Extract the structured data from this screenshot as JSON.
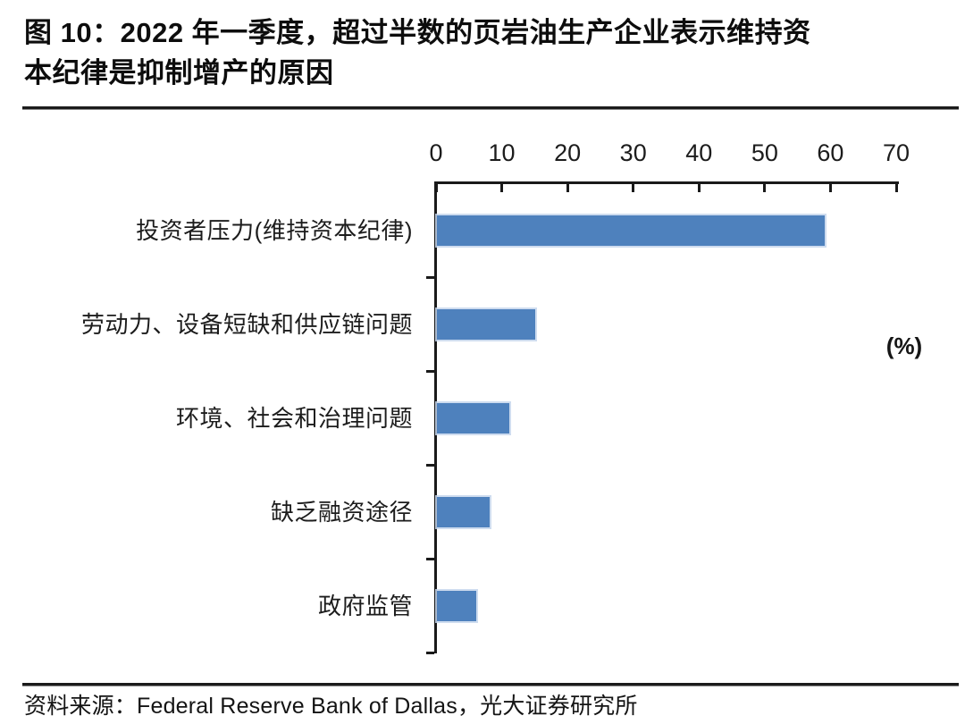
{
  "figure": {
    "title_lines": [
      "图 10：2022 年一季度，超过半数的页岩油生产企业表示维持资",
      "本纪律是抑制增产的原因"
    ],
    "title_full": "图 10：2022 年一季度，超过半数的页岩油生产企业表示维持资本纪律是抑制增产的原因",
    "source": "资料来源：Federal Reserve Bank of Dallas，光大证券研究所"
  },
  "chart_data": {
    "type": "bar",
    "orientation": "horizontal",
    "title": "",
    "xlabel": "",
    "ylabel": "",
    "unit_label": "(%)",
    "categories": [
      "投资者压力(维持资本纪律)",
      "劳动力、设备短缺和供应链问题",
      "环境、社会和治理问题",
      "缺乏融资途径",
      "政府监管"
    ],
    "values": [
      59,
      15,
      11,
      8,
      6
    ],
    "xlim": [
      0,
      70
    ],
    "x_ticks": [
      0,
      10,
      20,
      30,
      40,
      50,
      60,
      70
    ],
    "grid": false,
    "legend_position": "none",
    "bar_color": "#4e81bd",
    "bar_edge_color": "#c6d6ec",
    "axis_color": "#1a1a1a",
    "text_color": "#1c1c1c"
  }
}
